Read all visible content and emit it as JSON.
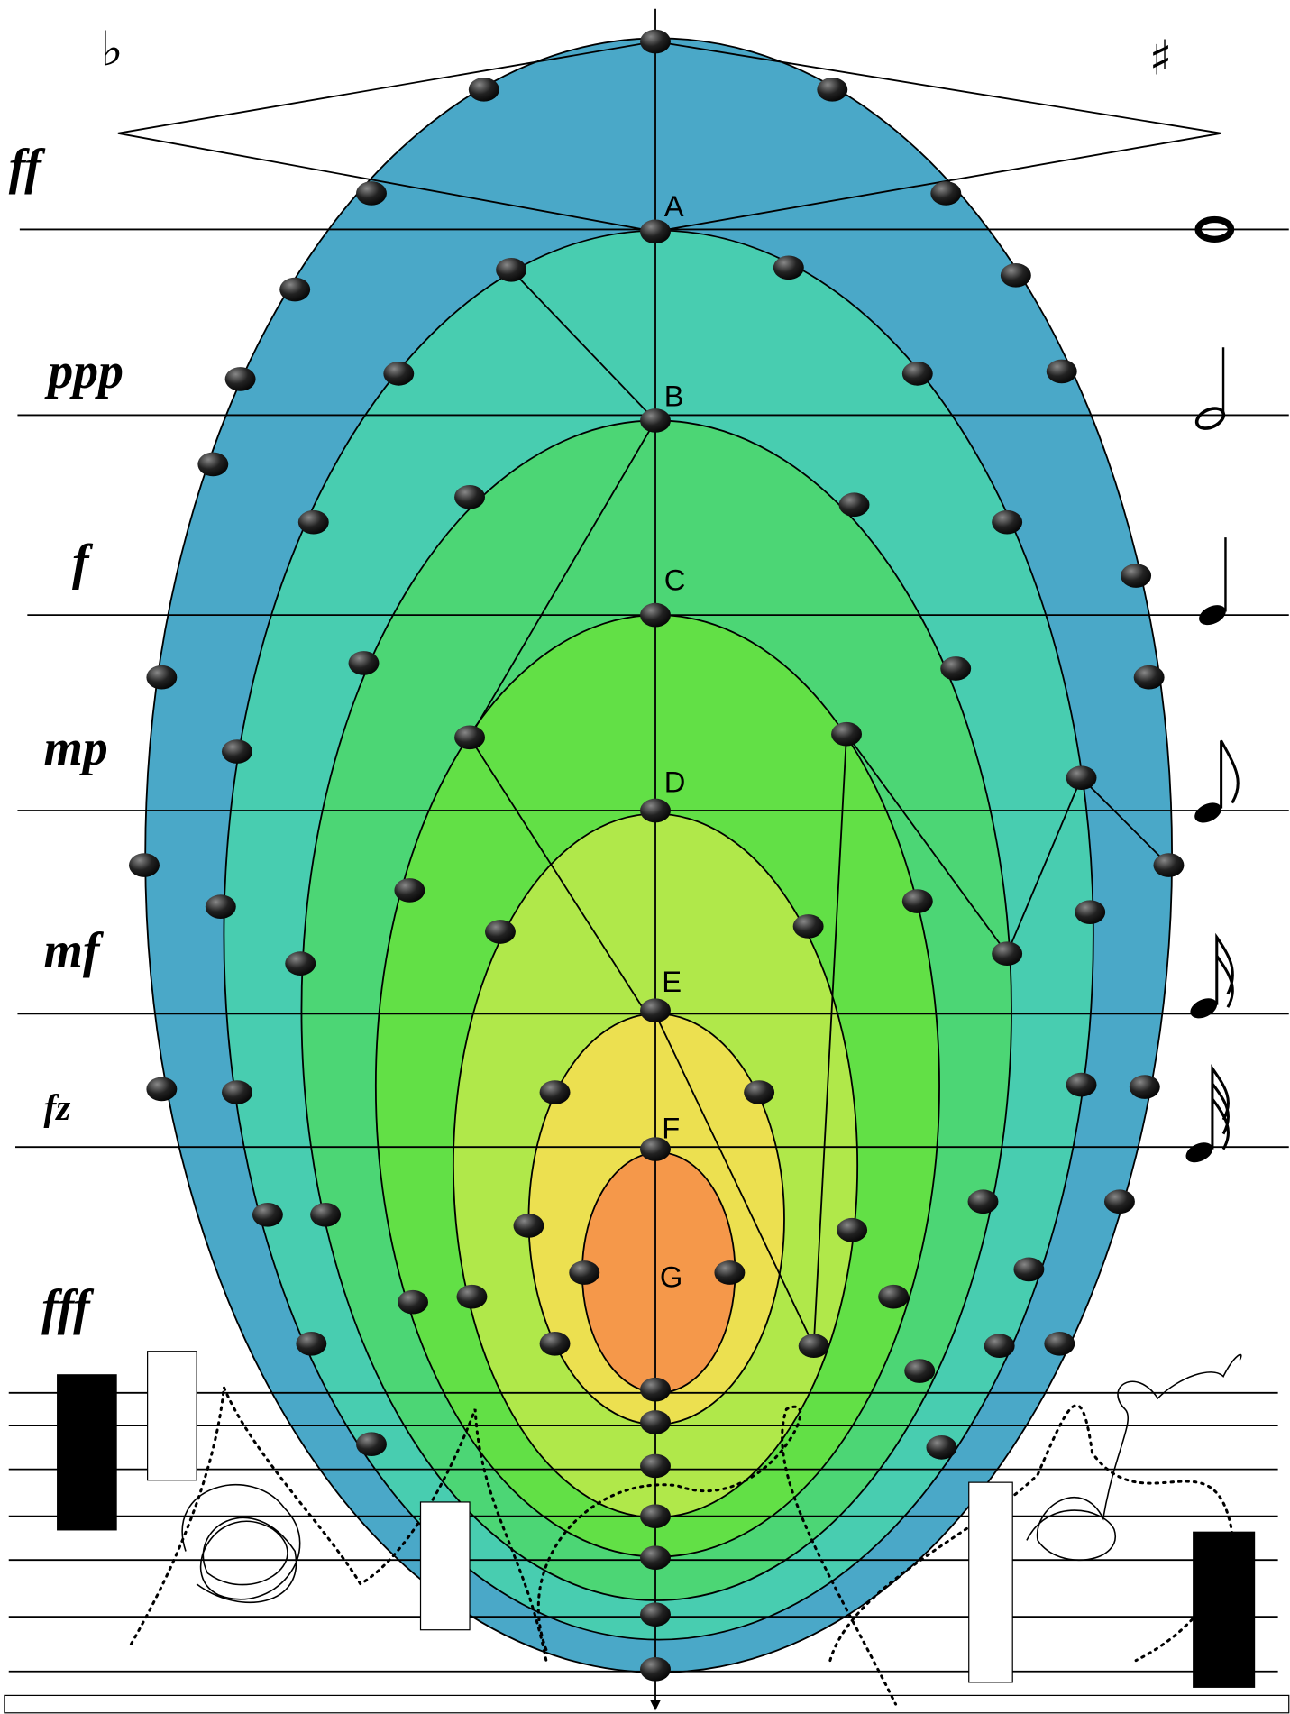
{
  "accidentals": {
    "flat": "♭",
    "sharp": "♯"
  },
  "dynamics": [
    "ff",
    "ppp",
    "f",
    "mp",
    "mf",
    "fz",
    "fff"
  ],
  "points": [
    "A",
    "B",
    "C",
    "D",
    "E",
    "F",
    "G"
  ]
}
